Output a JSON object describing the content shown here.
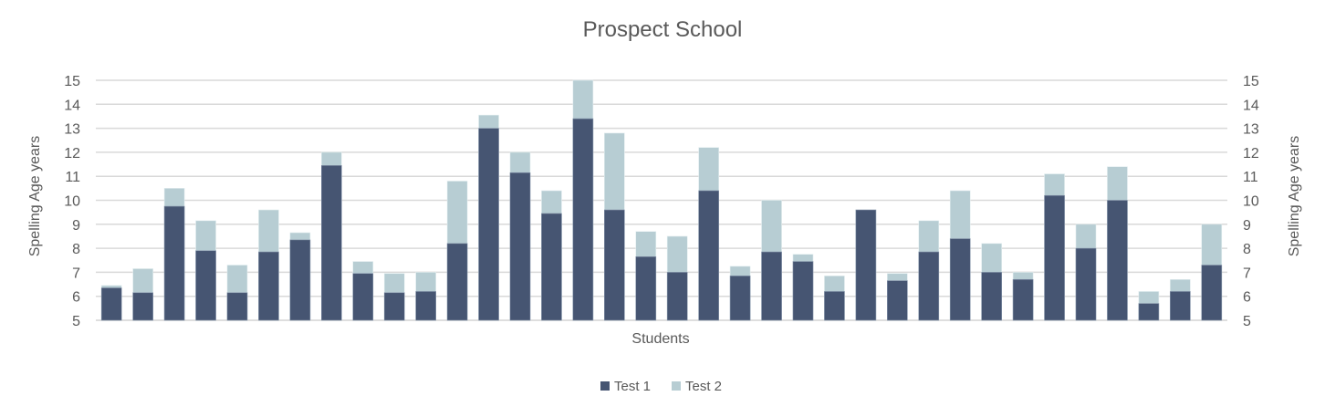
{
  "chart_data": {
    "type": "bar",
    "subtype": "overlapped",
    "title": "Prospect School",
    "xlabel": "Students",
    "ylabel": "Spelling Age  years",
    "ylabel_right": "Spelling Age  years",
    "ylim": [
      5,
      15
    ],
    "yticks": [
      "5",
      "6",
      "7",
      "8",
      "9",
      "10",
      "11",
      "12",
      "13",
      "14",
      "15"
    ],
    "grid": true,
    "legend_position": "bottom",
    "series": [
      {
        "name": "Test 1",
        "color": "#465572",
        "values": [
          6.35,
          6.15,
          9.75,
          7.9,
          6.15,
          7.85,
          8.35,
          11.45,
          6.95,
          6.15,
          6.2,
          8.2,
          13.0,
          11.15,
          9.45,
          13.4,
          9.6,
          7.65,
          7.0,
          10.4,
          6.85,
          7.85,
          7.45,
          6.2,
          9.6,
          6.65,
          7.85,
          8.4,
          7.0,
          6.7,
          10.2,
          8.0,
          10.0,
          5.7,
          6.2,
          7.3
        ]
      },
      {
        "name": "Test 2",
        "color": "#b7cdd3",
        "values": [
          6.45,
          7.15,
          10.5,
          9.15,
          7.3,
          9.6,
          8.65,
          12.0,
          7.45,
          6.95,
          7.0,
          10.8,
          13.55,
          12.0,
          10.4,
          15.0,
          12.8,
          8.7,
          8.5,
          12.2,
          7.25,
          10.0,
          7.75,
          6.85,
          9.6,
          6.95,
          9.15,
          10.4,
          8.2,
          7.0,
          11.1,
          9.0,
          11.4,
          6.2,
          6.7,
          9.0
        ]
      }
    ]
  }
}
